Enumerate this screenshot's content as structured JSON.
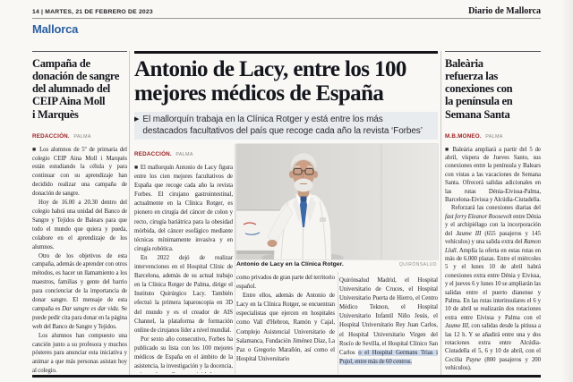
{
  "page": {
    "folio": "14 | MARTES, 21 DE FEBRERO DE 2023",
    "masthead": "Diario de Mallorca",
    "section": "Mallorca"
  },
  "left_article": {
    "headline": "Campaña de\ndonación de sangre\ndel alumnado del\nCEIP Aina Moll\ni Marquès",
    "byline": {
      "author": "REDACCIÓN.",
      "place": "PALMA"
    },
    "paragraphs": [
      {
        "indent": false,
        "runs": [
          {
            "t": "■ Los alumnos de 5º de primaria del colegio CEIP Aina Moll i Marquès están estudiando la célula y para continuar con su aprendizaje han decidido realizar una campaña de donación de sangre."
          }
        ]
      },
      {
        "indent": true,
        "runs": [
          {
            "t": "Hoy de 16.00 a 20.30 dentro del colegio habrá una unidad del Banco de Sangre y Tejidos de Balears para que todo el mundo que quiera y pueda, colabore en el aprendizaje de los alumnos."
          }
        ]
      },
      {
        "indent": true,
        "runs": [
          {
            "t": "Otro de los objetivos de esta campaña, además de aprender con otros métodos, es hacer un llamamiento a los maestros, familias y gente del barrio para concienciar de la importancia de donar sangre. El mensaje de esta campaña es "
          },
          {
            "t": "Dar sangre es dar vida",
            "i": true
          },
          {
            "t": ". Se puede pedir cita para donar en la página web del Banco de Sangre y Tejidos."
          }
        ]
      },
      {
        "indent": true,
        "runs": [
          {
            "t": "Los alumnos han compuesto una canción junto a su profesora y muchos pósteres para anunciar esta iniciativa y animar a que más personas asistan hoy al colegio."
          }
        ]
      }
    ]
  },
  "main_article": {
    "headline": "Antonio de Lacy, entre los 100\nmejores médicos de España",
    "standfirst_arrow": "▶",
    "standfirst": "El mallorquín trabaja en la Clínica Rotger y está entre los más\ndestacados facultativos del país que recoge cada año la revista ‘Forbes’",
    "byline": {
      "author": "REDACCIÓN.",
      "place": "PALMA"
    },
    "photo": {
      "caption": "Antonio de Lacy en la Clínica Rotger.",
      "credit": "QUIRÓNSALUD"
    },
    "col1_paragraphs": [
      {
        "indent": false,
        "runs": [
          {
            "t": "■ El mallorquín Antonio de Lacy figura entre los cien mejores facultativos de España que recoge cada año la revista Forbes. El cirujano gastrointestinal, actualmente en la Clínica Rotger, es pionero en cirugía del cáncer de colon y recto, cirugía bariátrica para la obesidad mórbida, del cáncer esofágico mediante técnicas mínimamente invasiva y en cirugía robótica."
          }
        ]
      },
      {
        "indent": true,
        "runs": [
          {
            "t": "En 2022 dejó de realizar intervenciones en el Hospital Clínic de Barcelona, además de su actual trabajo en la Clínica Rotger de Palma, dirige el Instituto Quirúrgico Lacy. También efectuó la primera laparoscopia en 3D del mundo y es el creador de AIS Channel, la plataforma de formación online de cirujanos líder a nivel mundial."
          }
        ]
      },
      {
        "indent": true,
        "runs": [
          {
            "t": "Por sexto año consecutivo, Forbes ha publicado su lista con los 100 mejores médicos de España en el ámbito de la asistencia, la investigación y la docencia, quienes desarrollan su actividad tanto en centros públicos"
          }
        ]
      }
    ],
    "col2_paragraphs": [
      {
        "indent": false,
        "runs": [
          {
            "t": "como privados de gran parte del territorio español."
          }
        ]
      },
      {
        "indent": true,
        "runs": [
          {
            "t": "Entre ellos, además de Antonio de Lacy en la Clínica Rotger, se encuentran especialistas que ejercen en hospitales como Vall d'Hebron, Ramón y Cajal, Complejo Asistencial Universitario de Salamanca, Fundación Jiménez Díaz, La Paz o Gregorio Marañón, así como el Hospital Universitario"
          }
        ]
      }
    ],
    "col3_paragraphs": [
      {
        "indent": false,
        "runs": [
          {
            "t": "Quirónsalud Madrid, el Hospital Universitario de Cruces, el Hospital Universitario Puerta de Hierro, el Centro Médico Teknon, el Hospital Universitario Infantil Niño Jesús, el Hospital Universitario Rey Juan Carlos, el Hospital Universitario Virgen del Rocío de Sevilla, el Hospital Clínico San Carlos "
          },
          {
            "t": "o el Hospital Germans Trias i Pujol, entre más de 60 centros.",
            "hl": true
          }
        ]
      }
    ]
  },
  "right_article": {
    "headline": "Baleària\nrefuerza las\nconexiones con\nla península en\nSemana Santa",
    "byline": {
      "author": "M.B.MONEO.",
      "place": "PALMA"
    },
    "paragraphs": [
      {
        "indent": false,
        "runs": [
          {
            "t": "■ Baleària ampliará a partir del 5 de abril, víspera de Jueves Santo, sus conexiones entre la península y Balears con vistas a las vacaciones de Semana Santa. Ofrecerá salidas adicionales en las rutas Dénia-Eivissa-Palma, Barcelona-Eivissa y Alcúdia-Ciutadella."
          }
        ]
      },
      {
        "indent": true,
        "runs": [
          {
            "t": "Reforzará las conexiones diarias del "
          },
          {
            "t": "fast ferry Eleanor Roosevelt",
            "i": true
          },
          {
            "t": " entre Dénia y el archipiélago con la incorporación del "
          },
          {
            "t": "Jaume III",
            "i": true
          },
          {
            "t": " (655 pasajeros y 145 vehículos) y una salida extra del "
          },
          {
            "t": "Ramon Llull",
            "i": true
          },
          {
            "t": ". Amplía la oferta en estas rutas en más de 6.000 plazas. Entre el miércoles 5 y el lunes 10 de abril habrá conexiones extra entre Dénia y Eivissa, y el jueves 6 y lunes 10 se ampliarán las salidas entre el puerto dianense y Palma. En las rutas interinsulares el 6 y 10 de abril se realizarán dos rotaciones extra entre Eivissa y Palma con el "
          },
          {
            "t": "Jaume III",
            "i": true
          },
          {
            "t": ", con salidas desde la pitiusa a las 12 h. Y se añadirá entre una y dos rotaciones extra entre Alcúdia-Ciutadella el 5, 6 y 10 de abril, con el "
          },
          {
            "t": "Cecilia Payne",
            "i": true
          },
          {
            "t": " (800 pasajeros y 200 vehículos)."
          }
        ]
      }
    ]
  },
  "colors": {
    "section_blue": "#2b5fa3",
    "byline_red": "#9c1b1e",
    "selection_highlight": "#cdd9ec",
    "rule_dark": "#16161a",
    "paper": "#f9f8f5"
  }
}
